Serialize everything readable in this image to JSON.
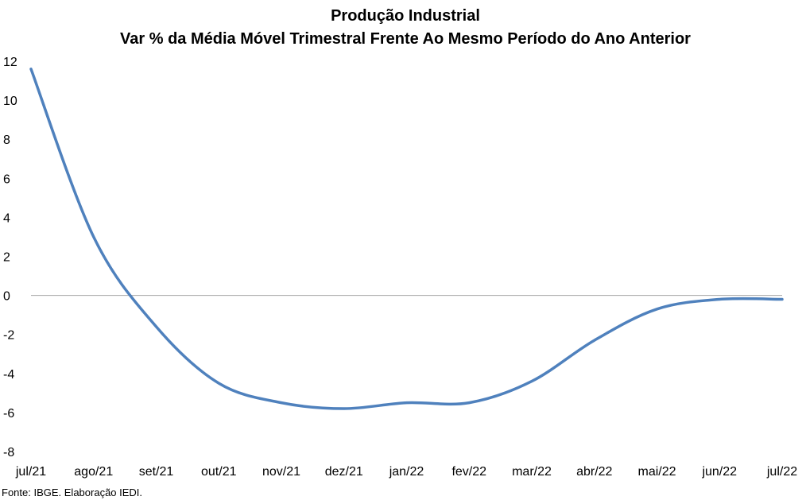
{
  "chart_data": {
    "type": "line",
    "title": "Produção Industrial",
    "subtitle": "Var % da Média Móvel Trimestral Frente Ao Mesmo Período do Ano Anterior",
    "xlabel": "",
    "ylabel": "",
    "categories": [
      "jul/21",
      "ago/21",
      "set/21",
      "out/21",
      "nov/21",
      "dez/21",
      "jan/22",
      "fev/22",
      "mar/22",
      "abr/22",
      "mai/22",
      "jun/22",
      "jul/22"
    ],
    "series": [
      {
        "color": "#4f81bd",
        "values": [
          11.6,
          3.0,
          -1.6,
          -4.5,
          -5.5,
          -5.8,
          -5.5,
          -5.5,
          -4.4,
          -2.3,
          -0.7,
          -0.2,
          -0.2
        ]
      }
    ],
    "ylim": [
      -8,
      12
    ],
    "yticks": [
      "12",
      "10",
      "8",
      "6",
      "4",
      "2",
      "0",
      "-2",
      "-4",
      "-6",
      "-8"
    ],
    "zero_line": true,
    "grid": false,
    "legend": "none"
  },
  "source": "Fonte: IBGE. Elaboração IEDI."
}
